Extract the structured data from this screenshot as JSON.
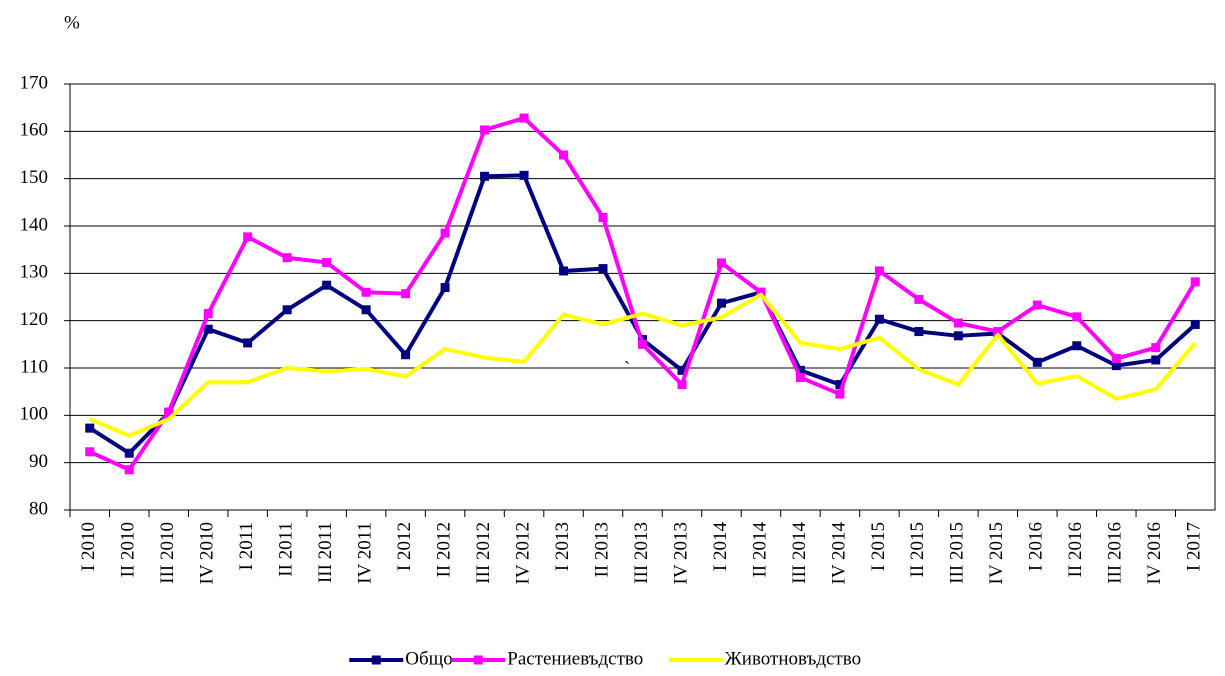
{
  "chart_data": {
    "type": "line",
    "y_label": "%",
    "annotation": "`",
    "categories": [
      "I 2010",
      "II 2010",
      "III 2010",
      "IV 2010",
      "I 2011",
      "II 2011",
      "III 2011",
      "IV 2011",
      "I 2012",
      "II 2012",
      "III 2012",
      "IV 2012",
      "I 2013",
      "II 2013",
      "III 2013",
      "IV 2013",
      "I 2014",
      "II 2014",
      "III 2014",
      "IV 2014",
      "I 2015",
      "II 2015",
      "III 2015",
      "IV 2015",
      "I 2016",
      "II 2016",
      "III 2016",
      "IV 2016",
      "I 2017"
    ],
    "series": [
      {
        "name": "Общо",
        "color": "#000080",
        "marker": true,
        "values": [
          97.3,
          92,
          100.5,
          118.2,
          115.3,
          122.3,
          127.5,
          122.3,
          112.8,
          127,
          150.5,
          150.7,
          130.5,
          131,
          116,
          109.5,
          123.7,
          126,
          109.5,
          106.5,
          120.3,
          117.7,
          116.8,
          117.3,
          111.2,
          114.7,
          110.5,
          111.7,
          119.2
        ]
      },
      {
        "name": "Растениевъдство",
        "color": "#ff00ff",
        "marker": true,
        "values": [
          92.3,
          88.5,
          100.7,
          121.5,
          137.7,
          133.3,
          132.3,
          126,
          125.7,
          138.5,
          160.3,
          162.8,
          155,
          141.8,
          115,
          106.5,
          132.2,
          126,
          108,
          104.5,
          130.5,
          124.5,
          119.5,
          117.7,
          123.3,
          120.8,
          112,
          114.3,
          128.2
        ]
      },
      {
        "name": "Животновъдство",
        "color": "#ffff00",
        "marker": false,
        "values": [
          99.2,
          95.7,
          99.2,
          107,
          107,
          110,
          109.3,
          109.8,
          108.2,
          114,
          112.2,
          111.3,
          121.3,
          119.2,
          121.5,
          119,
          120.7,
          125.5,
          115.3,
          114,
          116.4,
          109.7,
          106.5,
          117,
          106.7,
          108.3,
          103.5,
          105.5,
          115.3
        ]
      }
    ],
    "ylim": [
      80,
      170
    ],
    "yticks": [
      80,
      90,
      100,
      110,
      120,
      130,
      140,
      150,
      160,
      170
    ],
    "grid": true,
    "legend": "bottom"
  }
}
